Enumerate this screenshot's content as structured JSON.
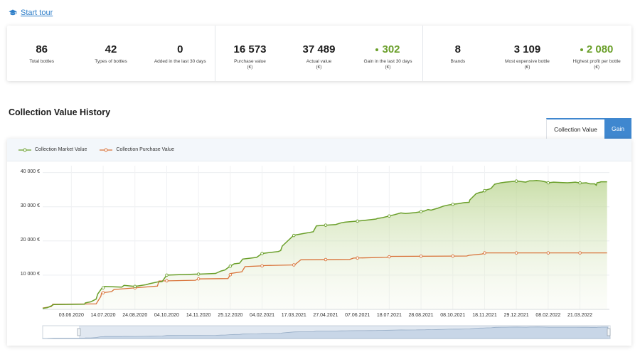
{
  "tour": {
    "label": "Start tour",
    "icon": "graduation-cap-icon"
  },
  "stats": {
    "groups": [
      [
        {
          "value": "86",
          "label": "Total bottles",
          "unit": "",
          "highlight": false
        },
        {
          "value": "42",
          "label": "Types of bottles",
          "unit": "",
          "highlight": false
        },
        {
          "value": "0",
          "label": "Added in the last 30 days",
          "unit": "",
          "highlight": false
        }
      ],
      [
        {
          "value": "16 573",
          "label": "Purchase value",
          "unit": "(€)",
          "highlight": false
        },
        {
          "value": "37 489",
          "label": "Actual value",
          "unit": "(€)",
          "highlight": false
        },
        {
          "value": "302",
          "label": "Gain in the last 30 days",
          "unit": "(€)",
          "highlight": true
        }
      ],
      [
        {
          "value": "8",
          "label": "Brands",
          "unit": "",
          "highlight": false
        },
        {
          "value": "3 109",
          "label": "Most expensive bottle",
          "unit": "(€)",
          "highlight": false
        },
        {
          "value": "2 080",
          "label": "Highest profit per bottle",
          "unit": "(€)",
          "highlight": true
        }
      ]
    ]
  },
  "section_title": "Collection Value History",
  "tabs": {
    "collection_value": "Collection Value",
    "gain": "Gain",
    "active": "collection_value"
  },
  "colors": {
    "market": "#6a9f2a",
    "purchase": "#d9733a",
    "accent": "#3f87cf",
    "stat_green": "#6a9f2a"
  },
  "chart_data": {
    "type": "area",
    "legend": [
      "Collection Market Value",
      "Collection Purchase Value"
    ],
    "legend_position": "top-left",
    "grid": true,
    "ylim": [
      0,
      42000
    ],
    "y_ticks": [
      10000,
      20000,
      30000,
      40000
    ],
    "y_tick_labels": [
      "10 000 €",
      "20 000 €",
      "30 000 €",
      "40 000 €"
    ],
    "x_ticks": [
      "2020-06-03",
      "2020-07-14",
      "2020-08-24",
      "2020-10-04",
      "2020-11-14",
      "2020-12-25",
      "2021-02-04",
      "2021-03-17",
      "2021-04-27",
      "2021-06-07",
      "2021-07-18",
      "2021-08-28",
      "2021-10-08",
      "2021-11-18",
      "2021-12-29",
      "2022-02-08",
      "2022-03-21"
    ],
    "x_tick_labels": [
      "03.06.2020",
      "14.07.2020",
      "24.08.2020",
      "04.10.2020",
      "14.11.2020",
      "25.12.2020",
      "04.02.2021",
      "17.03.2021",
      "27.04.2021",
      "07.06.2021",
      "18.07.2021",
      "28.08.2021",
      "08.10.2021",
      "18.11.2021",
      "29.12.2021",
      "08.02.2022",
      "21.03.2022"
    ],
    "xlim": [
      "2020-04-27",
      "2022-04-28"
    ],
    "series": [
      {
        "name": "Collection Market Value",
        "x": [
          "2020-04-27",
          "2020-05-03",
          "2020-05-09",
          "2020-05-11",
          "2020-06-20",
          "2020-06-21",
          "2020-06-28",
          "2020-07-05",
          "2020-07-07",
          "2020-07-12",
          "2020-07-15",
          "2020-07-16",
          "2020-08-07",
          "2020-08-10",
          "2020-08-24",
          "2020-09-07",
          "2020-09-12",
          "2020-09-22",
          "2020-09-28",
          "2020-10-04",
          "2020-11-10",
          "2020-11-14",
          "2020-12-06",
          "2020-12-13",
          "2020-12-18",
          "2020-12-24",
          "2020-12-30",
          "2021-01-06",
          "2021-01-10",
          "2021-01-21",
          "2021-01-28",
          "2021-02-02",
          "2021-02-03",
          "2021-02-10",
          "2021-02-25",
          "2021-02-28",
          "2021-03-02",
          "2021-03-16",
          "2021-03-18",
          "2021-03-30",
          "2021-04-04",
          "2021-04-11",
          "2021-04-15",
          "2021-04-26",
          "2021-05-10",
          "2021-05-17",
          "2021-05-22",
          "2021-05-27",
          "2021-06-07",
          "2021-06-15",
          "2021-06-23",
          "2021-07-01",
          "2021-07-03",
          "2021-07-09",
          "2021-07-18",
          "2021-07-25",
          "2021-08-02",
          "2021-08-08",
          "2021-08-21",
          "2021-08-24",
          "2021-09-02",
          "2021-09-06",
          "2021-09-10",
          "2021-09-19",
          "2021-09-26",
          "2021-10-02",
          "2021-10-08",
          "2021-10-15",
          "2021-10-23",
          "2021-10-29",
          "2021-10-30",
          "2021-11-07",
          "2021-11-12",
          "2021-11-15",
          "2021-11-18",
          "2021-11-20",
          "2021-11-23",
          "2021-11-26",
          "2021-12-01",
          "2021-12-09",
          "2021-12-15",
          "2021-12-20",
          "2021-12-29",
          "2022-01-03",
          "2022-01-10",
          "2022-01-15",
          "2022-01-19",
          "2022-01-24",
          "2022-01-31",
          "2022-02-04",
          "2022-02-08",
          "2022-02-15",
          "2022-02-24",
          "2022-03-05",
          "2022-03-10",
          "2022-03-15",
          "2022-03-23",
          "2022-03-29",
          "2022-04-03",
          "2022-04-09",
          "2022-04-11",
          "2022-04-12",
          "2022-04-16",
          "2022-04-17",
          "2022-04-22",
          "2022-04-25"
        ],
        "y": [
          300,
          500,
          1100,
          1400,
          1500,
          1900,
          2200,
          3000,
          4500,
          6100,
          6400,
          6700,
          6500,
          7000,
          6700,
          7200,
          7500,
          8000,
          8100,
          10000,
          10300,
          10300,
          10500,
          11200,
          11500,
          12500,
          13300,
          13500,
          14700,
          15000,
          15200,
          16000,
          16300,
          16500,
          16900,
          17200,
          18500,
          21500,
          21700,
          22200,
          22400,
          22700,
          24400,
          24600,
          24800,
          25300,
          25500,
          25600,
          25800,
          26000,
          26200,
          26400,
          26600,
          26800,
          27300,
          27700,
          28200,
          28000,
          28300,
          28400,
          28800,
          29200,
          29000,
          29600,
          30200,
          30500,
          30700,
          30900,
          31200,
          31300,
          32000,
          33800,
          34200,
          34300,
          34700,
          34900,
          35100,
          35300,
          36600,
          37000,
          37200,
          37300,
          37500,
          37400,
          37200,
          37600,
          37600,
          37700,
          37500,
          37300,
          37000,
          37200,
          37100,
          37000,
          37100,
          37200,
          36900,
          37000,
          36700,
          36700,
          36300,
          37000,
          37200,
          37300,
          37300,
          37300
        ]
      },
      {
        "name": "Collection Purchase Value",
        "x": [
          "2020-04-27",
          "2020-05-08",
          "2020-05-10",
          "2020-07-05",
          "2020-07-11",
          "2020-07-12",
          "2020-07-25",
          "2020-07-28",
          "2020-09-22",
          "2020-09-24",
          "2020-11-10",
          "2020-11-14",
          "2020-12-22",
          "2020-12-26",
          "2021-01-09",
          "2021-01-13",
          "2021-02-03",
          "2021-02-08",
          "2021-03-18",
          "2021-03-26",
          "2021-05-28",
          "2021-06-02",
          "2021-07-14",
          "2021-07-21",
          "2021-10-26",
          "2021-10-29",
          "2021-11-15",
          "2021-11-18",
          "2022-04-25"
        ],
        "y": [
          400,
          800,
          1500,
          1600,
          3800,
          4800,
          5200,
          5800,
          6800,
          8300,
          8500,
          8900,
          9000,
          10500,
          11000,
          12500,
          12700,
          12800,
          13000,
          14500,
          14600,
          15000,
          15200,
          15500,
          15600,
          15800,
          16200,
          16500,
          16500
        ]
      }
    ],
    "marker_dates": [
      "2020-07-14",
      "2020-08-24",
      "2020-10-04",
      "2020-11-14",
      "2020-12-25",
      "2021-02-04",
      "2021-03-17",
      "2021-04-27",
      "2021-06-07",
      "2021-07-18",
      "2021-08-28",
      "2021-10-08",
      "2021-11-18",
      "2021-12-29",
      "2022-02-08",
      "2022-03-21"
    ]
  }
}
